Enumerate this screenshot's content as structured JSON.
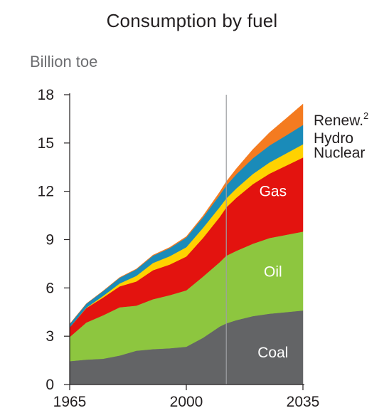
{
  "title": "Consumption by fuel",
  "unit_label": "Billion toe",
  "chart_data": {
    "type": "area",
    "stacked": true,
    "title": "Consumption by fuel",
    "ylabel": "Billion toe",
    "ylim": [
      0,
      18
    ],
    "xlim": [
      1965,
      2035
    ],
    "yticks": [
      "0",
      "3",
      "6",
      "9",
      "12",
      "15",
      "18"
    ],
    "xticks": [
      "1965",
      "2000",
      "2035"
    ],
    "divider_year": 2012,
    "x": [
      1965,
      1970,
      1975,
      1980,
      1985,
      1990,
      1995,
      2000,
      2005,
      2010,
      2012,
      2015,
      2020,
      2025,
      2030,
      2035
    ],
    "series": [
      {
        "name": "Coal",
        "color": "#636466",
        "label_position": "inside",
        "values": [
          1.45,
          1.55,
          1.6,
          1.8,
          2.1,
          2.2,
          2.25,
          2.35,
          2.9,
          3.6,
          3.8,
          4.0,
          4.25,
          4.4,
          4.5,
          4.6
        ]
      },
      {
        "name": "Oil",
        "color": "#8dc63f",
        "label_position": "inside",
        "values": [
          1.5,
          2.3,
          2.7,
          3.0,
          2.8,
          3.1,
          3.3,
          3.5,
          3.8,
          4.0,
          4.2,
          4.3,
          4.5,
          4.7,
          4.8,
          4.9
        ]
      },
      {
        "name": "Gas",
        "color": "#e3130f",
        "label_position": "inside",
        "values": [
          0.6,
          0.9,
          1.1,
          1.3,
          1.5,
          1.8,
          1.9,
          2.1,
          2.4,
          2.8,
          3.0,
          3.3,
          3.7,
          4.0,
          4.3,
          4.6
        ]
      },
      {
        "name": "Nuclear",
        "color": "#ffd200",
        "label_position": "right",
        "values": [
          0.0,
          0.02,
          0.1,
          0.18,
          0.35,
          0.45,
          0.52,
          0.58,
          0.63,
          0.62,
          0.56,
          0.58,
          0.63,
          0.7,
          0.76,
          0.82
        ]
      },
      {
        "name": "Hydro",
        "color": "#1a8bb9",
        "label_position": "right",
        "values": [
          0.2,
          0.25,
          0.3,
          0.35,
          0.4,
          0.45,
          0.5,
          0.6,
          0.65,
          0.75,
          0.8,
          0.88,
          0.98,
          1.05,
          1.12,
          1.2
        ]
      },
      {
        "name": "Renew.",
        "superscript": "2",
        "color": "#f47b20",
        "label_position": "right",
        "values": [
          0.0,
          0.0,
          0.01,
          0.02,
          0.03,
          0.04,
          0.05,
          0.06,
          0.09,
          0.18,
          0.24,
          0.34,
          0.55,
          0.8,
          1.05,
          1.3
        ]
      }
    ]
  }
}
